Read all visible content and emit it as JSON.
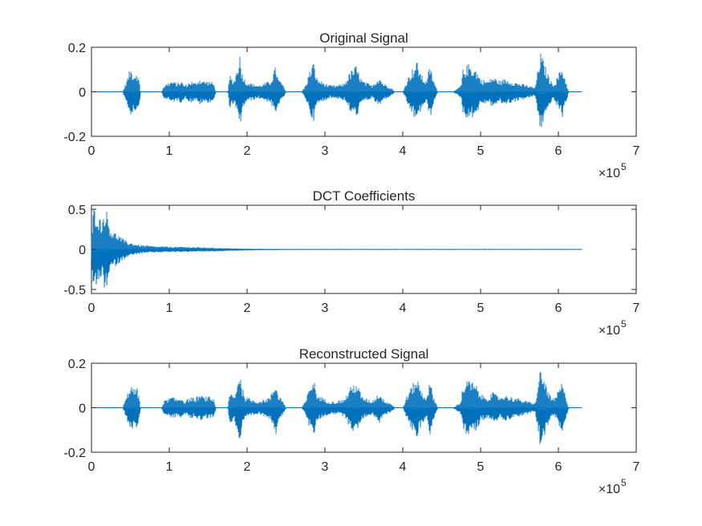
{
  "figure": {
    "background": "#ffffff",
    "line_color": "#0072BD",
    "axis_color": "#262626"
  },
  "chart_data": [
    {
      "type": "line",
      "title": "Original Signal",
      "xlim": [
        0,
        700000
      ],
      "ylim": [
        -0.2,
        0.2
      ],
      "x_ticks": [
        0,
        1,
        2,
        3,
        4,
        5,
        6,
        7
      ],
      "x_tick_labels": [
        "0",
        "1",
        "2",
        "3",
        "4",
        "5",
        "6",
        "7"
      ],
      "x_exponent_base": "×10",
      "x_exponent_power": "5",
      "y_ticks": [
        -0.2,
        0,
        0.2
      ],
      "y_tick_labels": [
        "-0.2",
        "0",
        "0.2"
      ],
      "data_end_x": 630000,
      "envelope": {
        "x": [
          0,
          40000,
          45000,
          50000,
          55000,
          58000,
          62000,
          63000,
          90000,
          93000,
          98000,
          103000,
          110000,
          115000,
          120000,
          128000,
          133000,
          138000,
          145000,
          152000,
          157000,
          160000,
          175000,
          178000,
          183000,
          188000,
          190000,
          193000,
          198000,
          205000,
          215000,
          230000,
          235000,
          237000,
          240000,
          245000,
          250000,
          270000,
          275000,
          280000,
          285000,
          290000,
          295000,
          300000,
          305000,
          315000,
          325000,
          332000,
          340000,
          348000,
          355000,
          360000,
          365000,
          370000,
          375000,
          380000,
          385000,
          390000,
          400000,
          405000,
          410000,
          418000,
          425000,
          430000,
          435000,
          440000,
          445000,
          455000,
          465000,
          475000,
          477000,
          485000,
          495000,
          500000,
          510000,
          515000,
          520000,
          525000,
          530000,
          540000,
          550000,
          560000,
          570000,
          577000,
          585000,
          590000,
          595000,
          605000,
          607000,
          610000,
          613000,
          630000
        ],
        "y": [
          0,
          0,
          0.05,
          0.11,
          0.08,
          0.1,
          0.04,
          0,
          0,
          0.03,
          0.04,
          0.05,
          0.04,
          0.05,
          0.03,
          0.05,
          0.04,
          0.06,
          0.05,
          0.05,
          0.04,
          0,
          0,
          0.08,
          0.05,
          0.12,
          0.19,
          0.1,
          0.05,
          0.04,
          0.03,
          0.05,
          0.1,
          0.12,
          0.06,
          0.04,
          0,
          0,
          0.03,
          0.09,
          0.14,
          0.06,
          0.05,
          0.04,
          0.03,
          0.03,
          0.04,
          0.09,
          0.12,
          0.05,
          0.04,
          0.03,
          0.05,
          0.07,
          0.04,
          0.03,
          0.02,
          0,
          0,
          0.05,
          0.09,
          0.14,
          0.07,
          0.05,
          0.12,
          0.05,
          0,
          0,
          0,
          0.03,
          0.1,
          0.13,
          0.1,
          0.06,
          0.05,
          0.07,
          0.06,
          0.05,
          0.06,
          0.05,
          0.04,
          0.03,
          0.02,
          0.18,
          0.1,
          0.05,
          0.04,
          0.12,
          0.08,
          0.05,
          0,
          0
        ]
      }
    },
    {
      "type": "line",
      "title": "DCT Coefficients",
      "xlim": [
        0,
        700000
      ],
      "ylim": [
        -0.55,
        0.55
      ],
      "x_ticks": [
        0,
        1,
        2,
        3,
        4,
        5,
        6,
        7
      ],
      "x_tick_labels": [
        "0",
        "1",
        "2",
        "3",
        "4",
        "5",
        "6",
        "7"
      ],
      "x_exponent_base": "×10",
      "x_exponent_power": "5",
      "y_ticks": [
        -0.5,
        0,
        0.5
      ],
      "y_tick_labels": [
        "-0.5",
        "0",
        "0.5"
      ],
      "data_end_x": 630000,
      "envelope": {
        "x": [
          0,
          3000,
          8000,
          13000,
          18000,
          25000,
          35000,
          45000,
          60000,
          80000,
          100000,
          130000,
          160000,
          190000,
          220000,
          260000,
          300000,
          630000
        ],
        "y": [
          0.2,
          0.55,
          0.45,
          0.35,
          0.55,
          0.25,
          0.18,
          0.1,
          0.06,
          0.04,
          0.035,
          0.03,
          0.02,
          0.01,
          0.006,
          0.003,
          0.002,
          0.002
        ]
      }
    },
    {
      "type": "line",
      "title": "Reconstructed Signal",
      "xlim": [
        0,
        700000
      ],
      "ylim": [
        -0.2,
        0.2
      ],
      "x_ticks": [
        0,
        1,
        2,
        3,
        4,
        5,
        6,
        7
      ],
      "x_tick_labels": [
        "0",
        "1",
        "2",
        "3",
        "4",
        "5",
        "6",
        "7"
      ],
      "x_exponent_base": "×10",
      "x_exponent_power": "5",
      "y_ticks": [
        -0.2,
        0,
        0.2
      ],
      "y_tick_labels": [
        "-0.2",
        "0",
        "0.2"
      ],
      "data_end_x": 630000,
      "envelope": {
        "x": [
          0,
          40000,
          45000,
          50000,
          55000,
          58000,
          62000,
          63000,
          90000,
          93000,
          98000,
          103000,
          110000,
          115000,
          120000,
          128000,
          133000,
          138000,
          145000,
          152000,
          157000,
          160000,
          175000,
          178000,
          183000,
          188000,
          190000,
          193000,
          198000,
          205000,
          215000,
          230000,
          235000,
          237000,
          240000,
          245000,
          250000,
          270000,
          275000,
          280000,
          285000,
          290000,
          295000,
          300000,
          305000,
          315000,
          325000,
          332000,
          340000,
          348000,
          355000,
          360000,
          365000,
          370000,
          375000,
          380000,
          385000,
          390000,
          400000,
          405000,
          410000,
          418000,
          425000,
          430000,
          435000,
          440000,
          445000,
          455000,
          465000,
          475000,
          477000,
          485000,
          495000,
          500000,
          510000,
          515000,
          520000,
          525000,
          530000,
          540000,
          550000,
          560000,
          570000,
          577000,
          585000,
          590000,
          595000,
          605000,
          607000,
          610000,
          613000,
          630000
        ],
        "y": [
          0,
          0,
          0.05,
          0.11,
          0.08,
          0.1,
          0.04,
          0,
          0,
          0.03,
          0.04,
          0.05,
          0.04,
          0.05,
          0.03,
          0.05,
          0.04,
          0.06,
          0.05,
          0.05,
          0.04,
          0,
          0,
          0.08,
          0.05,
          0.12,
          0.19,
          0.1,
          0.05,
          0.04,
          0.03,
          0.05,
          0.1,
          0.12,
          0.06,
          0.04,
          0,
          0,
          0.03,
          0.09,
          0.14,
          0.06,
          0.05,
          0.04,
          0.03,
          0.03,
          0.04,
          0.09,
          0.12,
          0.05,
          0.04,
          0.03,
          0.05,
          0.07,
          0.04,
          0.03,
          0.02,
          0,
          0,
          0.05,
          0.09,
          0.14,
          0.07,
          0.05,
          0.12,
          0.05,
          0,
          0,
          0,
          0.03,
          0.1,
          0.13,
          0.1,
          0.06,
          0.05,
          0.07,
          0.06,
          0.05,
          0.06,
          0.05,
          0.04,
          0.03,
          0.02,
          0.18,
          0.1,
          0.05,
          0.04,
          0.12,
          0.08,
          0.05,
          0,
          0
        ]
      }
    }
  ]
}
